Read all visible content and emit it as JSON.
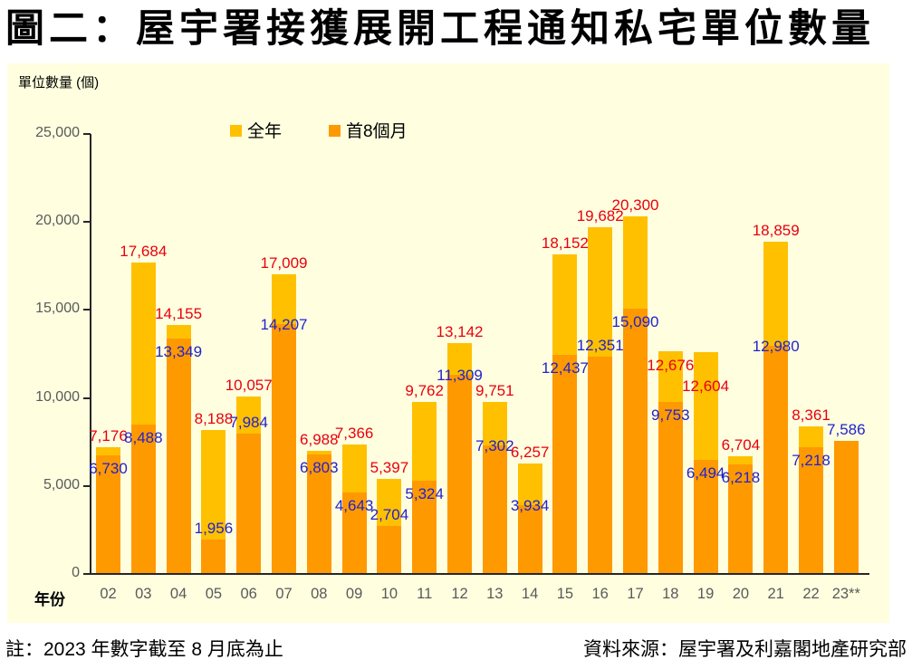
{
  "title": "圖二：屋宇署接獲展開工程通知私宅單位數量",
  "note": "註：2023 年數字截至 8 月底為止",
  "source": "資料來源：屋宇署及利嘉閣地產研究部",
  "colors": {
    "chart_background": "#FFFFE0",
    "page_background": "#FFFFFF",
    "full_year_bar": "#FFC000",
    "first_8_months_bar": "#FF9900",
    "full_year_label": "#E8000D",
    "first_8_months_label": "#2222CC",
    "axis": "#262626",
    "tick_label": "#595959"
  },
  "chart_data": {
    "type": "bar",
    "title": "圖二：屋宇署接獲展開工程通知私宅單位數量",
    "y_axis_title": "單位數量 (個)",
    "x_axis_title": "年份",
    "ylim": [
      0,
      25000
    ],
    "y_ticks": [
      "25,000",
      "20,000",
      "15,000",
      "10,000",
      "5,000",
      "0"
    ],
    "grid": false,
    "legend_position": "top",
    "categories": [
      "02",
      "03",
      "04",
      "05",
      "06",
      "07",
      "08",
      "09",
      "10",
      "11",
      "12",
      "13",
      "14",
      "15",
      "16",
      "17",
      "18",
      "19",
      "20",
      "21",
      "22",
      "23**"
    ],
    "series": [
      {
        "name": "全年",
        "color": "#FFC000",
        "label_color": "#E8000D",
        "values": [
          7176,
          17684,
          14155,
          8188,
          10057,
          17009,
          6988,
          7366,
          5397,
          9762,
          13142,
          9751,
          6257,
          18152,
          19682,
          20300,
          12676,
          12604,
          6704,
          18859,
          8361,
          null
        ]
      },
      {
        "name": "首8個月",
        "color": "#FF9900",
        "label_color": "#2222CC",
        "values": [
          6730,
          8488,
          13349,
          1956,
          7984,
          14207,
          6803,
          4643,
          2704,
          5324,
          11309,
          7302,
          3934,
          12437,
          12351,
          15090,
          9753,
          6494,
          6218,
          12980,
          7218,
          7586
        ]
      }
    ]
  }
}
